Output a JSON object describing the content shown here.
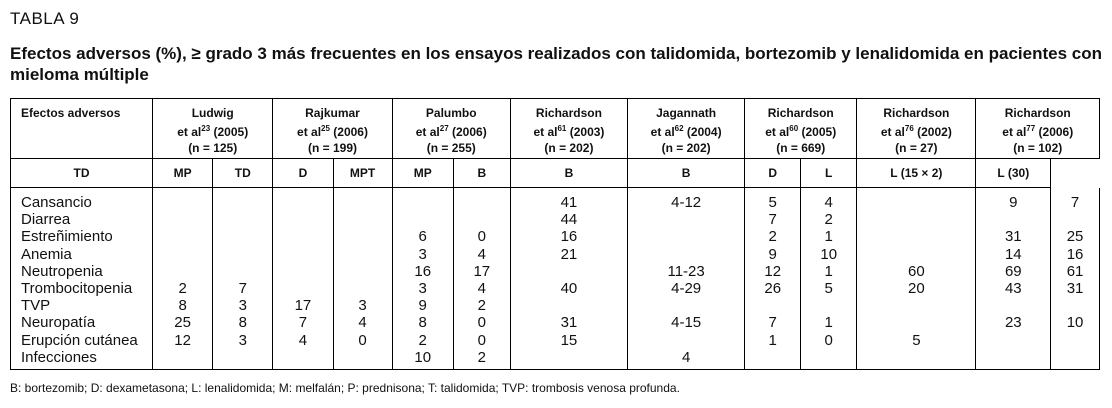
{
  "label": "TABLA 9",
  "title": "Efectos adversos (%), ≥ grado 3 más frecuentes en los ensayos realizados con talidomida, bortezomib y lenalidomida en pacientes con mieloma múltiple",
  "header": {
    "first": "Efectos adversos",
    "groups": [
      {
        "name": "Ludwig",
        "ref": "et al",
        "sup": "23",
        "year": "(2005)",
        "n": "(n = 125)"
      },
      {
        "name": "Rajkumar",
        "ref": "et al",
        "sup": "25",
        "year": "(2006)",
        "n": "(n = 199)"
      },
      {
        "name": "Palumbo",
        "ref": "et al",
        "sup": "27",
        "year": "(2006)",
        "n": "(n = 255)"
      },
      {
        "name": "Richardson",
        "ref": "et al",
        "sup": "61",
        "year": "(2003)",
        "n": "(n = 202)"
      },
      {
        "name": "Jagannath",
        "ref": "et al",
        "sup": "62",
        "year": "(2004)",
        "n": "(n = 202)"
      },
      {
        "name": "Richardson",
        "ref": "et al",
        "sup": "60",
        "year": "(2005)",
        "n": "(n = 669)"
      },
      {
        "name": "Richardson",
        "ref": "et al",
        "sup": "76",
        "year": "(2002)",
        "n": "(n = 27)"
      },
      {
        "name": "Richardson",
        "ref": "et al",
        "sup": "77",
        "year": "(2006)",
        "n": "(n = 102)"
      }
    ],
    "sub": [
      "TD",
      "MP",
      "TD",
      "D",
      "MPT",
      "MP",
      "B",
      "B",
      "B",
      "D",
      "L",
      "L (15 × 2)",
      "L (30)"
    ]
  },
  "rows": [
    {
      "name": "Cansancio",
      "v": [
        "",
        "",
        "",
        "",
        "",
        "",
        "41",
        "4-12",
        "5",
        "4",
        "",
        "9",
        "7"
      ]
    },
    {
      "name": "Diarrea",
      "v": [
        "",
        "",
        "",
        "",
        "",
        "",
        "44",
        "",
        "7",
        "2",
        "",
        "",
        ""
      ]
    },
    {
      "name": "Estreñimiento",
      "v": [
        "",
        "",
        "",
        "",
        "6",
        "0",
        "16",
        "",
        "2",
        "1",
        "",
        "31",
        "25"
      ]
    },
    {
      "name": "Anemia",
      "v": [
        "",
        "",
        "",
        "",
        "3",
        "4",
        "21",
        "",
        "9",
        "10",
        "",
        "14",
        "16"
      ]
    },
    {
      "name": "Neutropenia",
      "v": [
        "",
        "",
        "",
        "",
        "16",
        "17",
        "",
        "11-23",
        "12",
        "1",
        "60",
        "69",
        "61"
      ]
    },
    {
      "name": "Trombocitopenia",
      "v": [
        "2",
        "7",
        "",
        "",
        "3",
        "4",
        "40",
        "4-29",
        "26",
        "5",
        "20",
        "43",
        "31"
      ]
    },
    {
      "name": "TVP",
      "v": [
        "8",
        "3",
        "17",
        "3",
        "9",
        "2",
        "",
        "",
        "",
        "",
        "",
        "",
        ""
      ]
    },
    {
      "name": "Neuropatía",
      "v": [
        "25",
        "8",
        "7",
        "4",
        "8",
        "0",
        "31",
        "4-15",
        "7",
        "1",
        "",
        "23",
        "10"
      ]
    },
    {
      "name": "Erupción cutánea",
      "v": [
        "12",
        "3",
        "4",
        "0",
        "2",
        "0",
        "15",
        "",
        "1",
        "0",
        "5",
        "",
        ""
      ]
    },
    {
      "name": "Infecciones",
      "v": [
        "",
        "",
        "",
        "",
        "10",
        "2",
        "",
        "4",
        "",
        "",
        "",
        "",
        ""
      ]
    }
  ],
  "footnote": "B: bortezomib; D: dexametasona; L: lenalidomida; M: melfalán; P: prednisona; T: talidomida; TVP: trombosis venosa profunda."
}
